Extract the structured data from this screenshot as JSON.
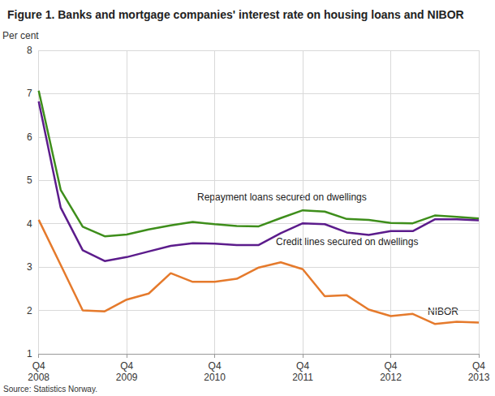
{
  "chart_data": {
    "type": "line",
    "title": "Figure 1. Banks and mortgage companies' interest rate on housing loans and NIBOR",
    "y_label": "Per cent",
    "source": "Source: Statistics Norway.",
    "categories": [
      "Q4\n2008",
      null,
      null,
      null,
      "Q4\n2009",
      null,
      null,
      null,
      "Q4\n2010",
      null,
      null,
      null,
      "Q4\n2011",
      null,
      null,
      null,
      "Q4\n2012",
      null,
      null,
      null,
      "Q4\n2013"
    ],
    "series": [
      {
        "name": "Repayment loans secured on dwellings",
        "color": "#3e8e1b",
        "values": [
          7.07,
          4.78,
          3.93,
          3.71,
          3.75,
          3.87,
          3.96,
          4.04,
          3.99,
          3.95,
          3.94,
          4.13,
          4.31,
          4.28,
          4.11,
          4.09,
          4.02,
          4.01,
          4.19,
          4.16,
          4.12
        ]
      },
      {
        "name": "Credit lines secured on dwellings",
        "color": "#5c1c8c",
        "values": [
          6.82,
          4.37,
          3.39,
          3.14,
          3.23,
          3.36,
          3.49,
          3.55,
          3.54,
          3.51,
          3.51,
          3.78,
          4.01,
          3.99,
          3.8,
          3.74,
          3.83,
          3.83,
          4.1,
          4.1,
          4.08
        ]
      },
      {
        "name": "NIBOR",
        "color": "#e57a2c",
        "values": [
          4.09,
          3.05,
          2.0,
          1.98,
          2.25,
          2.39,
          2.86,
          2.66,
          2.66,
          2.73,
          2.99,
          3.11,
          2.95,
          2.33,
          2.35,
          2.02,
          1.87,
          1.92,
          1.69,
          1.74,
          1.72
        ]
      }
    ],
    "ylim": [
      1,
      8
    ],
    "yticks": [
      1,
      2,
      3,
      4,
      5,
      6,
      7,
      8
    ],
    "grid": true
  }
}
